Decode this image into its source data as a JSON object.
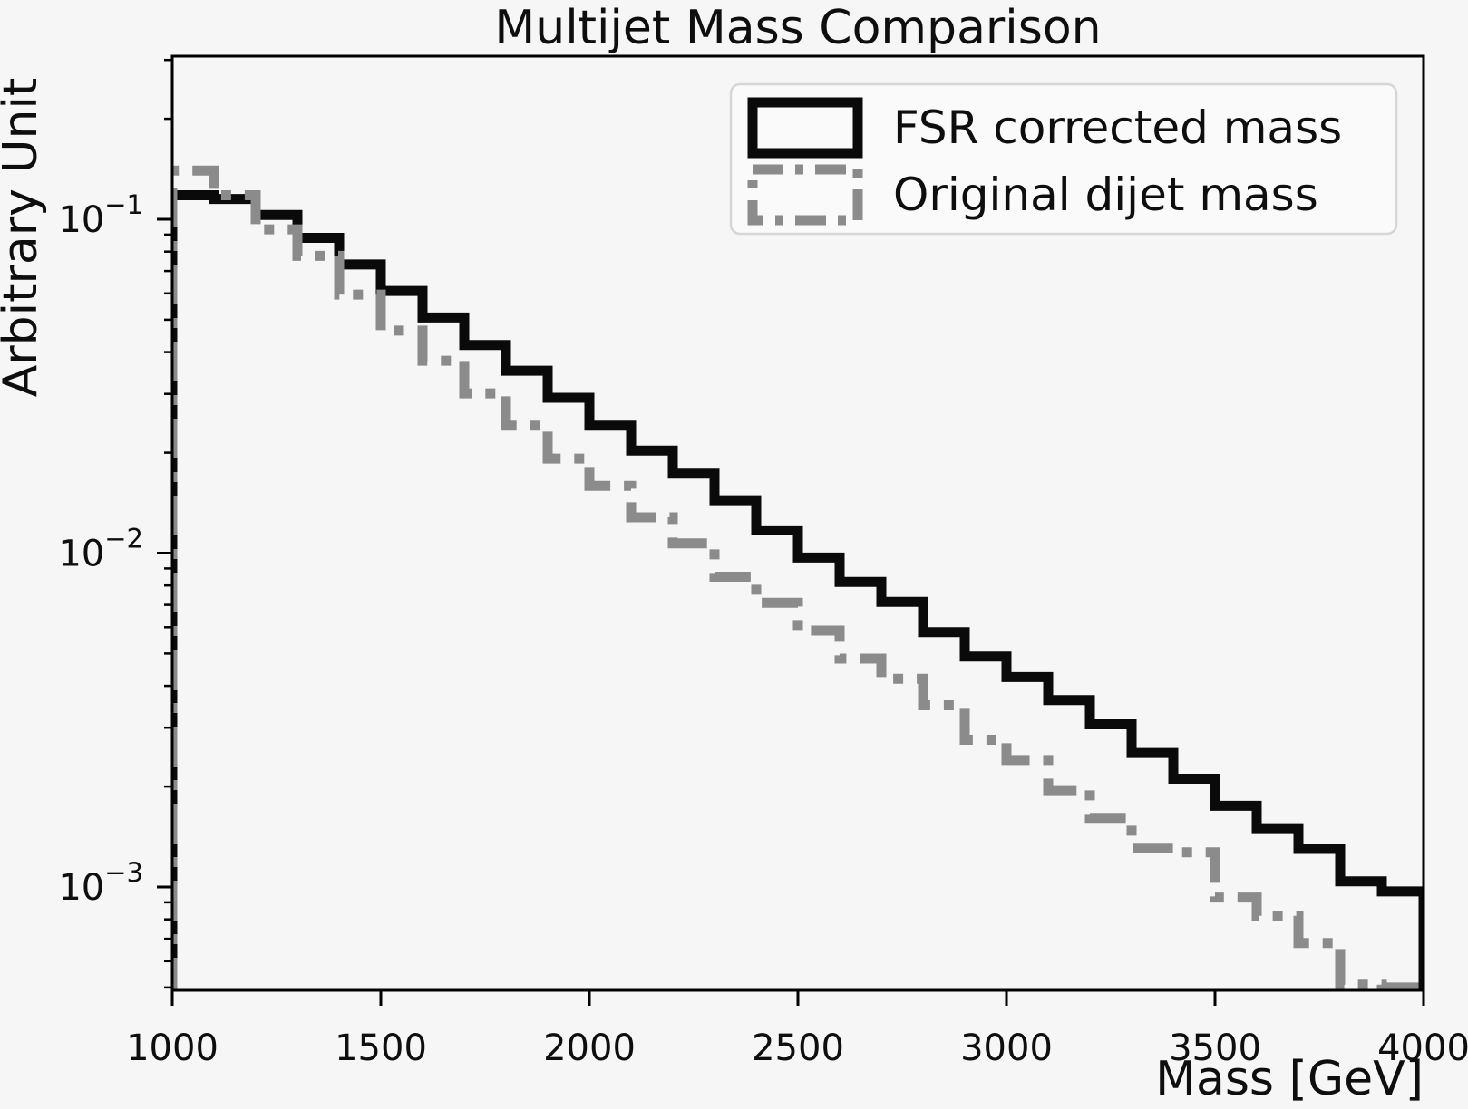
{
  "title": "Multijet Mass Comparison",
  "axes": {
    "xlabel": "Mass [GeV]",
    "ylabel": "Arbitrary Unit",
    "x_ticks": [
      {
        "value": 1000,
        "label": "1000"
      },
      {
        "value": 1500,
        "label": "1500"
      },
      {
        "value": 2000,
        "label": "2000"
      },
      {
        "value": 2500,
        "label": "2500"
      },
      {
        "value": 3000,
        "label": "3000"
      },
      {
        "value": 3500,
        "label": "3500"
      },
      {
        "value": 4000,
        "label": "4000"
      }
    ],
    "y_ticks": [
      {
        "value": 0.1,
        "base": "10",
        "sup": "−1"
      },
      {
        "value": 0.01,
        "base": "10",
        "sup": "−2"
      },
      {
        "value": 0.001,
        "base": "10",
        "sup": "−3"
      }
    ]
  },
  "legend": {
    "items": [
      {
        "label": "FSR corrected mass",
        "color": "#0a0a0a",
        "style": "solid"
      },
      {
        "label": "Original dijet mass",
        "color": "#8b8b8b",
        "style": "dashdot"
      }
    ]
  },
  "colors": {
    "background": "#f6f6f6",
    "axes_background": "#f6f6f6",
    "frame": "#000000",
    "legend_background": "#fafafa",
    "legend_border": "#d6d6d6",
    "fsr_series": "#0a0a0a",
    "dijet_series": "#8b8b8b"
  },
  "chart_data": {
    "type": "step-histogram",
    "title": "Multijet Mass Comparison",
    "xlabel": "Mass [GeV]",
    "ylabel": "Arbitrary Unit",
    "yscale": "log",
    "xlim": [
      1000,
      4000
    ],
    "ylim": [
      0.00048,
      0.308
    ],
    "grid": false,
    "legend_position": "upper right",
    "bin_width_gev": 100,
    "bin_edges": [
      1000,
      1100,
      1200,
      1300,
      1400,
      1500,
      1600,
      1700,
      1800,
      1900,
      2000,
      2100,
      2200,
      2300,
      2400,
      2500,
      2600,
      2700,
      2800,
      2900,
      3000,
      3100,
      3200,
      3300,
      3400,
      3500,
      3600,
      3700,
      3800,
      3900,
      4000
    ],
    "series": [
      {
        "name": "FSR corrected mass",
        "values": [
          0.118,
          0.115,
          0.103,
          0.088,
          0.0732,
          0.061,
          0.0508,
          0.042,
          0.0352,
          0.0292,
          0.0241,
          0.0203,
          0.0173,
          0.0144,
          0.0117,
          0.0097,
          0.0082,
          0.00715,
          0.0058,
          0.0049,
          0.00425,
          0.00363,
          0.00307,
          0.00252,
          0.00211,
          0.00175,
          0.0015,
          0.0013,
          0.00104,
          0.00097
        ]
      },
      {
        "name": "Original dijet mass",
        "values": [
          0.14,
          0.118,
          0.0933,
          0.0777,
          0.0595,
          0.0464,
          0.0377,
          0.0301,
          0.0241,
          0.0192,
          0.0159,
          0.0128,
          0.0107,
          0.0085,
          0.0071,
          0.00586,
          0.00483,
          0.0042,
          0.0035,
          0.00276,
          0.0024,
          0.00195,
          0.00161,
          0.00131,
          0.00127,
          0.00093,
          0.00082,
          0.00068,
          0.00051,
          0.0005
        ]
      }
    ]
  }
}
